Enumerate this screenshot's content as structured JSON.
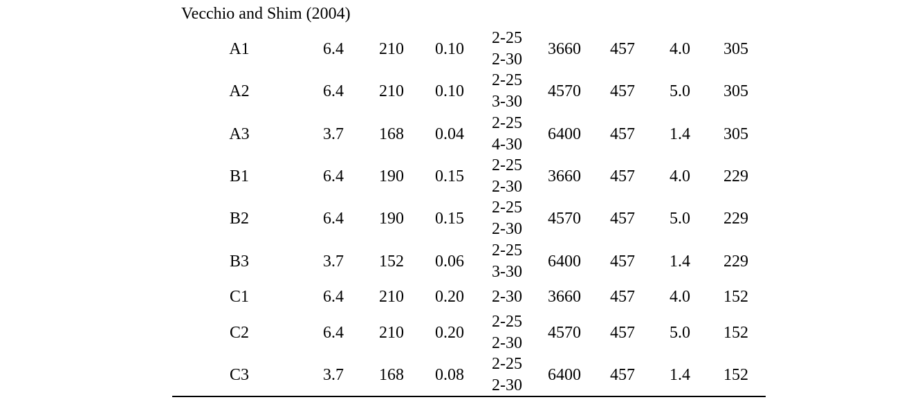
{
  "heading": "Vecchio and Shim (2004)",
  "rows": [
    {
      "specimen": "A1",
      "c1": "6.4",
      "c2": "210",
      "c3": "0.10",
      "bars": [
        "2-25",
        "2-30"
      ],
      "c5": "3660",
      "c6": "457",
      "c7": "4.0",
      "c8": "305"
    },
    {
      "specimen": "A2",
      "c1": "6.4",
      "c2": "210",
      "c3": "0.10",
      "bars": [
        "2-25",
        "3-30"
      ],
      "c5": "4570",
      "c6": "457",
      "c7": "5.0",
      "c8": "305"
    },
    {
      "specimen": "A3",
      "c1": "3.7",
      "c2": "168",
      "c3": "0.04",
      "bars": [
        "2-25",
        "4-30"
      ],
      "c5": "6400",
      "c6": "457",
      "c7": "1.4",
      "c8": "305"
    },
    {
      "specimen": "B1",
      "c1": "6.4",
      "c2": "190",
      "c3": "0.15",
      "bars": [
        "2-25",
        "2-30"
      ],
      "c5": "3660",
      "c6": "457",
      "c7": "4.0",
      "c8": "229"
    },
    {
      "specimen": "B2",
      "c1": "6.4",
      "c2": "190",
      "c3": "0.15",
      "bars": [
        "2-25",
        "2-30"
      ],
      "c5": "4570",
      "c6": "457",
      "c7": "5.0",
      "c8": "229"
    },
    {
      "specimen": "B3",
      "c1": "3.7",
      "c2": "152",
      "c3": "0.06",
      "bars": [
        "2-25",
        "3-30"
      ],
      "c5": "6400",
      "c6": "457",
      "c7": "1.4",
      "c8": "229"
    },
    {
      "specimen": "C1",
      "c1": "6.4",
      "c2": "210",
      "c3": "0.20",
      "bars": [
        "2-30"
      ],
      "c5": "3660",
      "c6": "457",
      "c7": "4.0",
      "c8": "152"
    },
    {
      "specimen": "C2",
      "c1": "6.4",
      "c2": "210",
      "c3": "0.20",
      "bars": [
        "2-25",
        "2-30"
      ],
      "c5": "4570",
      "c6": "457",
      "c7": "5.0",
      "c8": "152"
    },
    {
      "specimen": "C3",
      "c1": "3.7",
      "c2": "168",
      "c3": "0.08",
      "bars": [
        "2-25",
        "2-30"
      ],
      "c5": "6400",
      "c6": "457",
      "c7": "1.4",
      "c8": "152"
    }
  ]
}
